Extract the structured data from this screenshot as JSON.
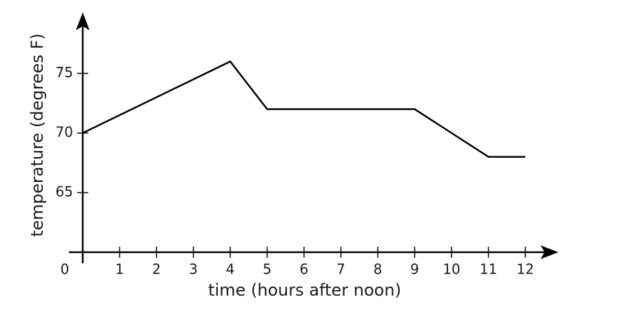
{
  "chart_data": {
    "type": "line",
    "x_label": "time (hours after noon)",
    "y_label": "temperature (degrees F)",
    "x": [
      0,
      4,
      5,
      9,
      11,
      12
    ],
    "values": [
      70,
      76,
      72,
      72,
      68,
      68
    ],
    "color": "#000000",
    "xlim": [
      0,
      13
    ],
    "ylim": [
      60,
      80
    ],
    "xticks": [
      0,
      1,
      2,
      3,
      4,
      5,
      6,
      7,
      8,
      9,
      10,
      11,
      12
    ],
    "yticks": [
      65,
      70,
      75
    ]
  }
}
